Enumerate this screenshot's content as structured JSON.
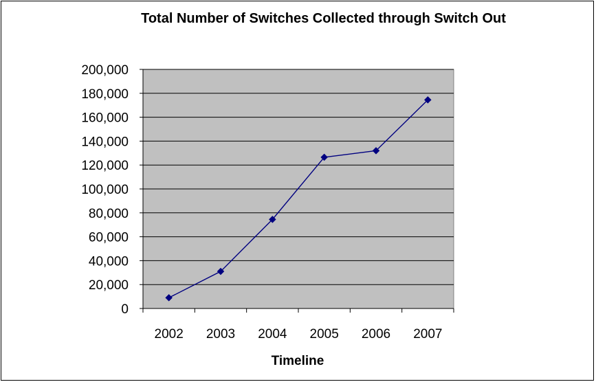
{
  "chart_data": {
    "type": "line",
    "title": "Total Number of Switches Collected through Switch Out",
    "xlabel": "Timeline",
    "ylabel": "",
    "categories": [
      "2002",
      "2003",
      "2004",
      "2005",
      "2006",
      "2007"
    ],
    "series": [
      {
        "values": [
          9000,
          31000,
          74500,
          126500,
          132000,
          174500
        ]
      }
    ],
    "ylim": [
      0,
      200000
    ],
    "y_ticks": [
      "0",
      "20,000",
      "40,000",
      "60,000",
      "80,000",
      "100,000",
      "120,000",
      "140,000",
      "160,000",
      "180,000",
      "200,000"
    ],
    "grid": true,
    "legend": "none",
    "colors": {
      "plot_background": "#c0c0c0",
      "gridline": "#000000",
      "series_line": "#000080",
      "marker": "#000080"
    }
  }
}
